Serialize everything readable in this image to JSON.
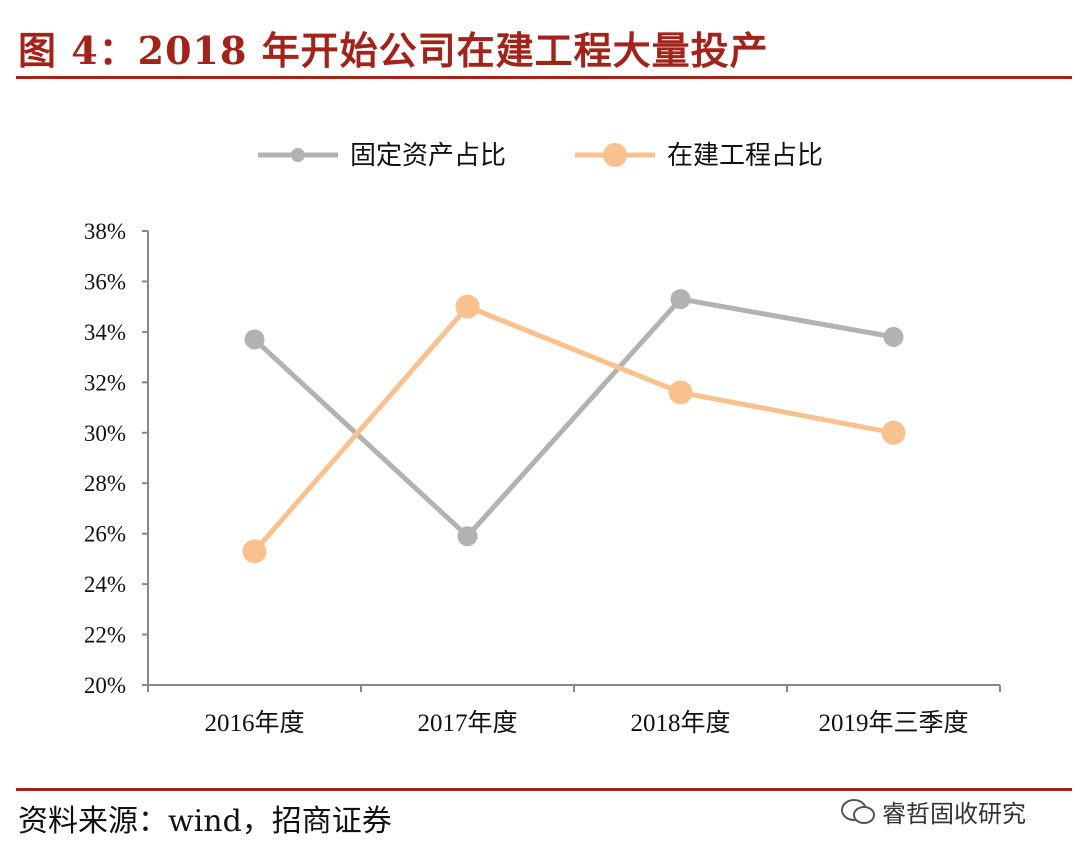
{
  "title": "图 4：2018 年开始公司在建工程大量投产",
  "source": "资料来源：wind，招商证券",
  "watermark": {
    "text": "睿哲固收研究",
    "icon": "wechat-icon"
  },
  "chart_data": {
    "type": "line",
    "categories": [
      "2016年度",
      "2017年度",
      "2018年度",
      "2019年三季度"
    ],
    "series": [
      {
        "name": "固定资产占比",
        "color": "#b2b2b2",
        "values": [
          33.7,
          25.9,
          35.3,
          33.8
        ]
      },
      {
        "name": "在建工程占比",
        "color": "#f8c18e",
        "values": [
          25.3,
          35.0,
          31.6,
          30.0
        ]
      }
    ],
    "ylim": [
      20,
      38
    ],
    "yticks": [
      "20%",
      "22%",
      "24%",
      "26%",
      "28%",
      "30%",
      "32%",
      "34%",
      "36%",
      "38%"
    ],
    "grid": false,
    "legend": "top"
  }
}
